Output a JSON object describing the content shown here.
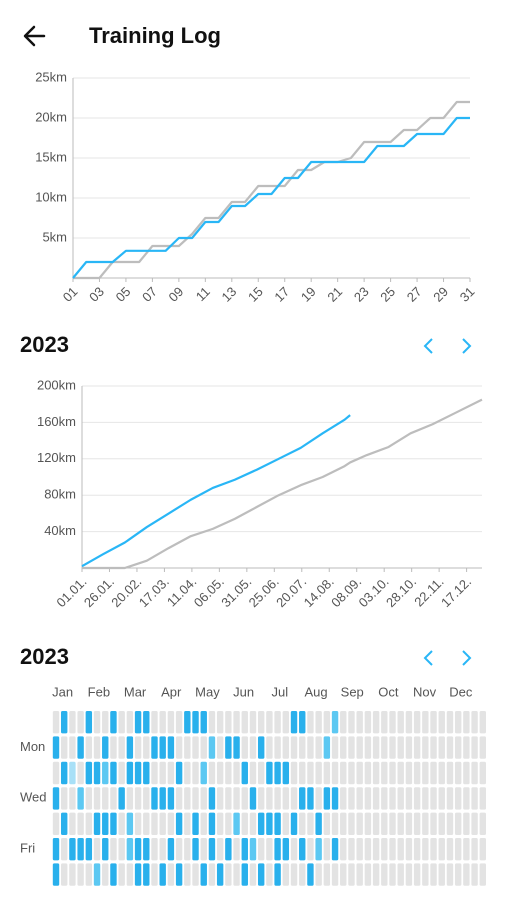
{
  "header": {
    "title": "Training Log"
  },
  "chart_data": [
    {
      "type": "line",
      "x": [
        1,
        2,
        3,
        4,
        5,
        6,
        7,
        8,
        9,
        10,
        11,
        12,
        13,
        14,
        15,
        16,
        17,
        18,
        19,
        20,
        21,
        22,
        23,
        24,
        25,
        26,
        27,
        28,
        29,
        30,
        31
      ],
      "series": [
        {
          "color": "#bdbdbd",
          "values": [
            0,
            0,
            0,
            2,
            2,
            2,
            4,
            4,
            4,
            5.5,
            7.5,
            7.5,
            9.5,
            9.5,
            11.5,
            11.5,
            11.5,
            13.5,
            13.5,
            14.5,
            14.5,
            15,
            17,
            17,
            17,
            18.5,
            18.5,
            20,
            20,
            22,
            22
          ]
        },
        {
          "color": "#29b6f6",
          "values": [
            0,
            2,
            2,
            2,
            3.4,
            3.4,
            3.4,
            3.4,
            5,
            5,
            7,
            7,
            9,
            9,
            10.5,
            10.5,
            12.5,
            12.5,
            14.5,
            14.5,
            14.5,
            14.5,
            14.5,
            16.5,
            16.5,
            16.5,
            18,
            18,
            18,
            20,
            20
          ]
        }
      ],
      "xlim": [
        1,
        31
      ],
      "xticks": [
        {
          "value": 1,
          "label": "01"
        },
        {
          "value": 3,
          "label": "03"
        },
        {
          "value": 5,
          "label": "05"
        },
        {
          "value": 7,
          "label": "07"
        },
        {
          "value": 9,
          "label": "09"
        },
        {
          "value": 11,
          "label": "11"
        },
        {
          "value": 13,
          "label": "13"
        },
        {
          "value": 15,
          "label": "15"
        },
        {
          "value": 17,
          "label": "17"
        },
        {
          "value": 19,
          "label": "19"
        },
        {
          "value": 21,
          "label": "21"
        },
        {
          "value": 23,
          "label": "23"
        },
        {
          "value": 25,
          "label": "25"
        },
        {
          "value": 27,
          "label": "27"
        },
        {
          "value": 29,
          "label": "29"
        },
        {
          "value": 31,
          "label": "31"
        }
      ],
      "ylim": [
        0,
        25
      ],
      "yticks": [
        {
          "value": 5,
          "label": "5km"
        },
        {
          "value": 10,
          "label": "10km"
        },
        {
          "value": 15,
          "label": "15km"
        },
        {
          "value": 20,
          "label": "20km"
        },
        {
          "value": 25,
          "label": "25km"
        }
      ],
      "grid": true
    },
    {
      "type": "line",
      "title": "2023",
      "x": [
        1,
        20,
        40,
        60,
        80,
        100,
        120,
        140,
        160,
        180,
        200,
        220,
        240,
        245,
        260,
        280,
        300,
        320,
        340,
        365
      ],
      "series": [
        {
          "color": "#bdbdbd",
          "values": [
            0,
            0,
            0,
            8,
            22,
            35,
            43,
            54,
            67,
            80,
            91,
            100,
            112,
            116,
            124,
            133,
            148,
            158,
            170,
            185
          ]
        },
        {
          "color": "#29b6f6",
          "values": [
            2,
            15,
            28,
            45,
            60,
            75,
            88,
            97,
            108,
            120,
            132,
            148,
            163,
            168,
            null,
            null,
            null,
            null,
            null,
            null
          ]
        }
      ],
      "xlim": [
        1,
        365
      ],
      "xticks": [
        {
          "value": 1,
          "label": "01.01."
        },
        {
          "value": 26,
          "label": "26.01."
        },
        {
          "value": 51,
          "label": "20.02."
        },
        {
          "value": 76,
          "label": "17.03."
        },
        {
          "value": 101,
          "label": "11.04."
        },
        {
          "value": 126,
          "label": "06.05."
        },
        {
          "value": 151,
          "label": "31.05."
        },
        {
          "value": 176,
          "label": "25.06."
        },
        {
          "value": 201,
          "label": "20.07."
        },
        {
          "value": 226,
          "label": "14.08."
        },
        {
          "value": 251,
          "label": "08.09."
        },
        {
          "value": 276,
          "label": "03.10."
        },
        {
          "value": 301,
          "label": "28.10."
        },
        {
          "value": 326,
          "label": "22.11."
        },
        {
          "value": 351,
          "label": "17.12."
        }
      ],
      "ylim": [
        0,
        200
      ],
      "yticks": [
        {
          "value": 40,
          "label": "40km"
        },
        {
          "value": 80,
          "label": "80km"
        },
        {
          "value": 120,
          "label": "120km"
        },
        {
          "value": 160,
          "label": "160km"
        },
        {
          "value": 200,
          "label": "200km"
        }
      ],
      "grid": true
    },
    {
      "type": "heatmap",
      "title": "2023",
      "months": [
        "Jan",
        "Feb",
        "Mar",
        "Apr",
        "May",
        "Jun",
        "Jul",
        "Aug",
        "Sep",
        "Oct",
        "Nov",
        "Dec"
      ],
      "weekdays": [
        "Mon",
        "Wed",
        "Fri"
      ],
      "colors": [
        "#e3e3e3",
        "#a8e0f7",
        "#5cc8f2",
        "#29b0ec"
      ],
      "values": [
        [
          0,
          3,
          0,
          0,
          3,
          0,
          0,
          3,
          0,
          0,
          3,
          3,
          0,
          0,
          0,
          0,
          3,
          3,
          3,
          0,
          0,
          0,
          0,
          0,
          0,
          0,
          0,
          0,
          0,
          3,
          3,
          0,
          0,
          0,
          2,
          0,
          0,
          0,
          0,
          0,
          0,
          0,
          0,
          0,
          0,
          0,
          0,
          0,
          0,
          0,
          0,
          0,
          0
        ],
        [
          3,
          0,
          0,
          3,
          0,
          0,
          3,
          0,
          0,
          3,
          0,
          0,
          3,
          3,
          3,
          0,
          0,
          0,
          0,
          2,
          0,
          3,
          3,
          0,
          0,
          3,
          0,
          0,
          0,
          0,
          0,
          0,
          0,
          2,
          0,
          0,
          0,
          0,
          0,
          0,
          0,
          0,
          0,
          0,
          0,
          0,
          0,
          0,
          0,
          0,
          0,
          0,
          0
        ],
        [
          0,
          3,
          1,
          0,
          3,
          3,
          2,
          3,
          0,
          3,
          3,
          3,
          0,
          0,
          0,
          3,
          0,
          0,
          2,
          0,
          0,
          0,
          0,
          3,
          0,
          0,
          3,
          3,
          3,
          0,
          0,
          0,
          0,
          0,
          0,
          0,
          0,
          0,
          0,
          0,
          0,
          0,
          0,
          0,
          0,
          0,
          0,
          0,
          0,
          0,
          0,
          0,
          0
        ],
        [
          3,
          0,
          0,
          2,
          0,
          0,
          0,
          0,
          3,
          0,
          0,
          0,
          3,
          3,
          3,
          0,
          0,
          0,
          0,
          3,
          0,
          0,
          0,
          0,
          3,
          0,
          0,
          0,
          0,
          0,
          3,
          3,
          0,
          3,
          3,
          0,
          0,
          0,
          0,
          0,
          0,
          0,
          0,
          0,
          0,
          0,
          0,
          0,
          0,
          0,
          0,
          0,
          0
        ],
        [
          0,
          3,
          0,
          0,
          0,
          3,
          3,
          3,
          0,
          2,
          0,
          0,
          0,
          0,
          0,
          3,
          0,
          3,
          0,
          3,
          0,
          0,
          2,
          0,
          0,
          3,
          3,
          3,
          0,
          3,
          0,
          0,
          3,
          0,
          0,
          0,
          0,
          0,
          0,
          0,
          0,
          0,
          0,
          0,
          0,
          0,
          0,
          0,
          0,
          0,
          0,
          0,
          0
        ],
        [
          3,
          0,
          3,
          3,
          3,
          0,
          3,
          0,
          0,
          2,
          3,
          3,
          0,
          0,
          3,
          0,
          0,
          3,
          0,
          3,
          0,
          3,
          0,
          3,
          2,
          0,
          0,
          3,
          3,
          0,
          3,
          0,
          2,
          0,
          3,
          0,
          0,
          0,
          0,
          0,
          0,
          0,
          0,
          0,
          0,
          0,
          0,
          0,
          0,
          0,
          0,
          0,
          0
        ],
        [
          3,
          0,
          0,
          0,
          0,
          2,
          0,
          3,
          0,
          0,
          3,
          3,
          0,
          3,
          0,
          3,
          0,
          0,
          3,
          0,
          3,
          0,
          0,
          3,
          0,
          3,
          0,
          3,
          0,
          0,
          0,
          3,
          0,
          0,
          0,
          0,
          0,
          0,
          0,
          0,
          0,
          0,
          0,
          0,
          0,
          0,
          0,
          0,
          0,
          0,
          0,
          0,
          0
        ]
      ]
    }
  ]
}
